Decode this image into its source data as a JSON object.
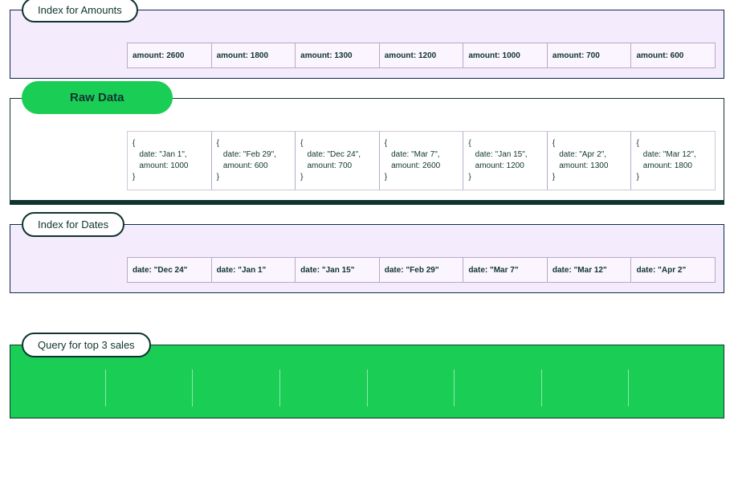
{
  "colors": {
    "lavender_bg": "#f4ebfd",
    "panel_border_dark": "#10342f",
    "panel_border_navy": "#0b2d4a",
    "green": "#1ace55",
    "cell_border": "#b9a9c6",
    "text": "#10342f"
  },
  "panels": {
    "amounts": {
      "label": "Index for Amounts",
      "cells": [
        "amount: 2600",
        "amount: 1800",
        "amount: 1300",
        "amount: 1200",
        "amount: 1000",
        "amount: 700",
        "amount: 600"
      ]
    },
    "raw": {
      "label": "Raw Data",
      "cells": [
        "{\n   date: \"Jan 1\",\n   amount: 1000\n}",
        "{\n   date: \"Feb 29\",\n   amount: 600\n}",
        "{\n   date: \"Dec 24\",\n   amount: 700\n}",
        "{\n   date: \"Mar 7\",\n   amount: 2600\n}",
        "{\n   date: \"Jan 15\",\n   amount: 1200\n}",
        "{\n   date: \"Apr 2\",\n   amount: 1300\n}",
        "{\n   date: \"Mar 12\",\n   amount: 1800\n}"
      ]
    },
    "dates": {
      "label": "Index for Dates",
      "cells": [
        "date: \"Dec 24\"",
        "date: \"Jan 1\"",
        "date: \"Jan 15\"",
        "date: \"Feb 29\"",
        "date: \"Mar 7\"",
        "date: \"Mar 12\"",
        "date: \"Apr 2\""
      ]
    },
    "query": {
      "label": "Query for top 3 sales",
      "cell_count": 8
    }
  }
}
